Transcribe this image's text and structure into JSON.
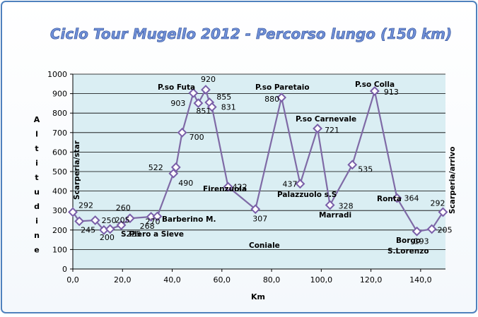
{
  "chart_data": {
    "type": "line",
    "title": "Ciclo Tour Mugello 2012 - Percorso lungo (150 km)",
    "xlabel": "Km",
    "ylabel": "Altitudine",
    "xlim": [
      0,
      150
    ],
    "ylim": [
      0,
      1000
    ],
    "x_ticks": [
      "0,0",
      "20,0",
      "40,0",
      "60,0",
      "80,0",
      "100,0",
      "120,0",
      "140,0"
    ],
    "y_ticks": [
      "0",
      "100",
      "200",
      "300",
      "400",
      "500",
      "600",
      "700",
      "800",
      "900",
      "1000"
    ],
    "grid": "horizontal",
    "series": [
      {
        "points": [
          {
            "x": 0.0,
            "y": 292,
            "label": "292"
          },
          {
            "x": 2.6,
            "y": 245,
            "label": "245"
          },
          {
            "x": 9.0,
            "y": 250,
            "label": "250"
          },
          {
            "x": 12.5,
            "y": 200,
            "label": "200"
          },
          {
            "x": 15.0,
            "y": 205,
            "label": "205"
          },
          {
            "x": 19.5,
            "y": 225,
            "label": "225"
          },
          {
            "x": 23.0,
            "y": 260,
            "label": "260"
          },
          {
            "x": 31.5,
            "y": 268,
            "label": "268"
          },
          {
            "x": 34.0,
            "y": 270,
            "label": "270"
          },
          {
            "x": 40.5,
            "y": 490,
            "label": "490"
          },
          {
            "x": 41.5,
            "y": 522,
            "label": "522"
          },
          {
            "x": 44.0,
            "y": 700,
            "label": "700"
          },
          {
            "x": 48.5,
            "y": 903,
            "label": "903"
          },
          {
            "x": 50.5,
            "y": 851,
            "label": "851"
          },
          {
            "x": 53.5,
            "y": 920,
            "label": "920"
          },
          {
            "x": 55.0,
            "y": 855,
            "label": "855"
          },
          {
            "x": 56.0,
            "y": 831,
            "label": "831"
          },
          {
            "x": 62.5,
            "y": 422,
            "label": "422"
          },
          {
            "x": 73.5,
            "y": 307,
            "label": "307"
          },
          {
            "x": 84.0,
            "y": 880,
            "label": "880"
          },
          {
            "x": 91.5,
            "y": 437,
            "label": "437"
          },
          {
            "x": 98.5,
            "y": 721,
            "label": "721"
          },
          {
            "x": 103.5,
            "y": 328,
            "label": "328"
          },
          {
            "x": 112.5,
            "y": 535,
            "label": "535"
          },
          {
            "x": 121.5,
            "y": 913,
            "label": "913"
          },
          {
            "x": 130.5,
            "y": 364,
            "label": "364"
          },
          {
            "x": 138.5,
            "y": 193,
            "label": "193"
          },
          {
            "x": 144.5,
            "y": 205,
            "label": "205"
          },
          {
            "x": 149.0,
            "y": 292,
            "label": "292"
          }
        ]
      }
    ],
    "annotations": [
      {
        "text": "Scarperia/star",
        "rotated": true
      },
      {
        "text": "S.Piero a Sieve"
      },
      {
        "text": "Barberino M."
      },
      {
        "text": "P.so Futa"
      },
      {
        "text": "Firenzuola"
      },
      {
        "text": "Coniale"
      },
      {
        "text": "P.so  Paretaio"
      },
      {
        "text": "P.so  Carnevale"
      },
      {
        "text": "Palazzuolo  s.S"
      },
      {
        "text": "Marradi"
      },
      {
        "text": "P.so  Colla"
      },
      {
        "text": "Ronta"
      },
      {
        "text": "Borgo"
      },
      {
        "text": "S.Lorenzo"
      },
      {
        "text": "Scarperia/arrivo",
        "rotated": true
      }
    ]
  },
  "colors": {
    "title": "#6f8fd6",
    "title_outline": "#2b4a94",
    "line": "#7f6aa6",
    "marker_stroke": "#7a5ea8",
    "marker_fill": "#ffffff",
    "plot_bg": "#daeef3",
    "grid": "#000000",
    "frame_border": "#4f81bd"
  }
}
